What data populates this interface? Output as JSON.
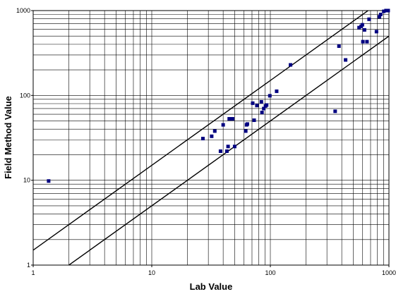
{
  "chart_data": {
    "type": "scatter",
    "title": "",
    "xlabel": "Lab Value",
    "ylabel": "Field Method Value",
    "xscale": "log",
    "yscale": "log",
    "xlim": [
      1,
      1000
    ],
    "ylim": [
      1,
      1000
    ],
    "grid": true,
    "legend": "none",
    "x_ticks": [
      "1",
      "10",
      "100",
      "1000"
    ],
    "y_ticks": [
      "1",
      "10",
      "100",
      "1000"
    ],
    "colors": {
      "marker": "#000080",
      "line": "#000000",
      "grid": "#000000",
      "background": "#ffffff"
    },
    "series": [
      {
        "points": [
          [
            1.35,
            9.8
          ],
          [
            27,
            31
          ],
          [
            32,
            33
          ],
          [
            34,
            38
          ],
          [
            38,
            22
          ],
          [
            40,
            45
          ],
          [
            43,
            22
          ],
          [
            44,
            25
          ],
          [
            45,
            53
          ],
          [
            48,
            53
          ],
          [
            50,
            25
          ],
          [
            62,
            38
          ],
          [
            63,
            45
          ],
          [
            64,
            46
          ],
          [
            71,
            81
          ],
          [
            73,
            51
          ],
          [
            77,
            76
          ],
          [
            84,
            84
          ],
          [
            85,
            63
          ],
          [
            88,
            70
          ],
          [
            91,
            75
          ],
          [
            93,
            77
          ],
          [
            99,
            99
          ],
          [
            113,
            112
          ],
          [
            148,
            229
          ],
          [
            352,
            65
          ],
          [
            379,
            381
          ],
          [
            431,
            262
          ],
          [
            560,
            630
          ],
          [
            583,
            652
          ],
          [
            597,
            680
          ],
          [
            603,
            430
          ],
          [
            622,
            592
          ],
          [
            653,
            430
          ],
          [
            680,
            790
          ],
          [
            785,
            565
          ],
          [
            830,
            845
          ],
          [
            852,
            900
          ],
          [
            905,
            980
          ],
          [
            945,
            1000
          ],
          [
            985,
            1000
          ]
        ]
      }
    ],
    "reference_lines": [
      {
        "x": [
          1,
          1000
        ],
        "y": [
          1.5,
          1500
        ]
      },
      {
        "x": [
          1,
          1000
        ],
        "y": [
          0.5,
          500
        ]
      }
    ]
  }
}
